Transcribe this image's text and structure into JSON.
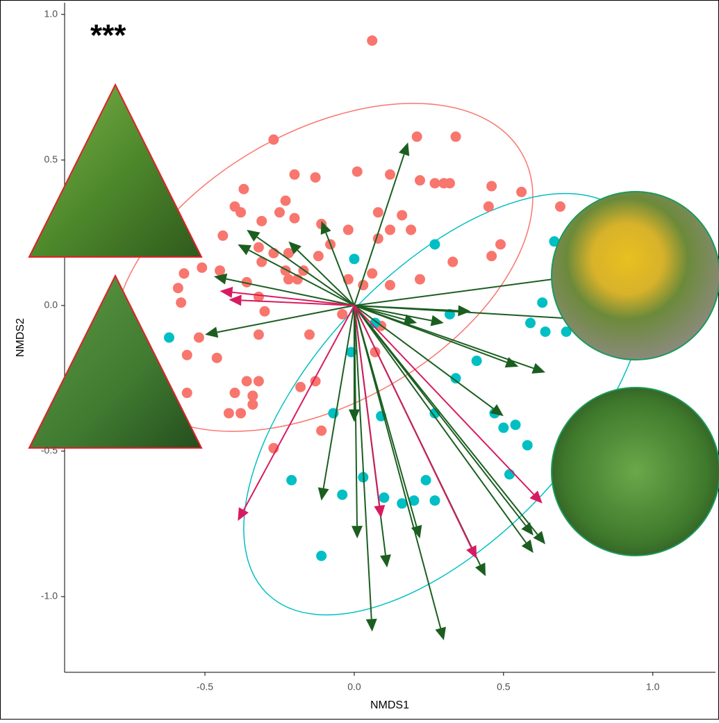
{
  "chart_data": {
    "type": "scatter",
    "annotation": "***",
    "xlabel": "NMDS1",
    "ylabel": "NMDS2",
    "xlim": [
      -0.97,
      1.21
    ],
    "ylim": [
      -1.26,
      1.04
    ],
    "xticks": [
      -0.5,
      {
        "value": 0,
        "label": "0.0"
      },
      0.5,
      {
        "value": 1,
        "label": "1.0"
      }
    ],
    "yticks": [
      {
        "value": 1,
        "label": "1.0"
      },
      0.5,
      {
        "value": 0,
        "label": "0.0"
      },
      -0.5,
      {
        "value": -1,
        "label": "-1.0"
      }
    ],
    "series": [
      {
        "color": "#f8766d",
        "x": [
          0.06,
          0.21,
          0.34,
          -0.27,
          0.01,
          0.12,
          -0.2,
          -0.13,
          0.22,
          0.27,
          0.3,
          0.32,
          0.46,
          0.56,
          -0.37,
          -0.23,
          -0.4,
          -0.38,
          -0.25,
          0.45,
          0.69,
          0.08,
          0.16,
          -0.2,
          -0.31,
          -0.11,
          -0.02,
          0.12,
          -0.44,
          0.19,
          0.08,
          0.49,
          0.46,
          -0.08,
          -0.32,
          -0.27,
          -0.22,
          -0.12,
          0.33,
          -0.31,
          -0.51,
          -0.45,
          -0.57,
          -0.23,
          -0.17,
          -0.19,
          -0.22,
          -0.36,
          0.06,
          0.22,
          0.12,
          -0.02,
          -0.59,
          -0.58,
          -0.32,
          0.03,
          -0.3,
          -0.04,
          -0.56,
          -0.52,
          -0.46,
          -0.32,
          -0.15,
          0.07,
          -0.36,
          -0.32,
          -0.13,
          -0.18,
          -0.34,
          -0.4,
          -0.34,
          -0.42,
          -0.38,
          -0.56,
          -0.11,
          -0.27,
          0.09
        ],
        "y": [
          0.91,
          0.58,
          0.58,
          0.57,
          0.46,
          0.45,
          0.45,
          0.44,
          0.43,
          0.42,
          0.42,
          0.42,
          0.41,
          0.39,
          0.4,
          0.36,
          0.34,
          0.32,
          0.32,
          0.34,
          0.34,
          0.32,
          0.31,
          0.3,
          0.29,
          0.28,
          0.26,
          0.26,
          0.24,
          0.26,
          0.23,
          0.21,
          0.17,
          0.21,
          0.2,
          0.18,
          0.18,
          0.17,
          0.15,
          0.15,
          0.13,
          0.12,
          0.11,
          0.12,
          0.12,
          0.09,
          0.09,
          0.08,
          0.11,
          0.09,
          0.07,
          0.09,
          0.06,
          0.01,
          0.03,
          0.07,
          -0.02,
          -0.03,
          -0.17,
          -0.11,
          -0.18,
          -0.1,
          -0.1,
          -0.16,
          -0.26,
          -0.26,
          -0.26,
          -0.28,
          -0.31,
          -0.3,
          -0.34,
          -0.37,
          -0.37,
          -0.3,
          -0.43,
          -0.49,
          -0.07
        ]
      },
      {
        "color": "#00bfc4",
        "x": [
          0.0,
          0.27,
          0.67,
          0.63,
          0.59,
          0.64,
          0.71,
          0.32,
          0.07,
          -0.01,
          0.41,
          0.34,
          0.09,
          0.27,
          -0.07,
          0.47,
          0.54,
          0.5,
          0.58,
          0.52,
          -0.21,
          0.03,
          -0.04,
          0.1,
          0.16,
          0.24,
          0.27,
          0.2,
          -0.11,
          -0.62
        ],
        "y": [
          0.16,
          0.21,
          0.22,
          0.01,
          -0.06,
          -0.09,
          -0.09,
          -0.03,
          -0.06,
          -0.16,
          -0.19,
          -0.25,
          -0.38,
          -0.37,
          -0.37,
          -0.37,
          -0.41,
          -0.42,
          -0.48,
          -0.58,
          -0.6,
          -0.59,
          -0.65,
          -0.66,
          -0.68,
          -0.6,
          -0.67,
          -0.67,
          -0.86,
          -0.11
        ]
      }
    ],
    "vectors": [
      {
        "color": "#1b5e20",
        "x": [
          0.18,
          -0.11,
          -0.36,
          -0.39,
          -0.22,
          -0.47,
          -0.5,
          -0.11,
          0.0,
          0.01,
          0.06,
          0.11,
          0.3,
          0.22,
          0.44,
          0.6,
          0.64,
          0.6,
          0.55,
          0.64,
          0.5,
          0.21,
          0.3,
          0.39,
          0.81,
          0.81
        ],
        "y": [
          0.56,
          0.29,
          0.26,
          0.21,
          0.22,
          0.1,
          -0.1,
          -0.67,
          -0.4,
          -0.8,
          -1.12,
          -0.9,
          -1.15,
          -0.8,
          -0.93,
          -0.85,
          -0.82,
          -0.79,
          -0.21,
          -0.23,
          -0.38,
          -0.06,
          -0.06,
          -0.02,
          0.11,
          -0.05
        ]
      },
      {
        "color": "#d81b60",
        "x": [
          -0.45,
          -0.42,
          -0.39,
          0.09,
          0.41,
          0.63
        ],
        "y": [
          0.05,
          0.02,
          -0.74,
          -0.73,
          -0.87,
          -0.68
        ]
      }
    ]
  }
}
